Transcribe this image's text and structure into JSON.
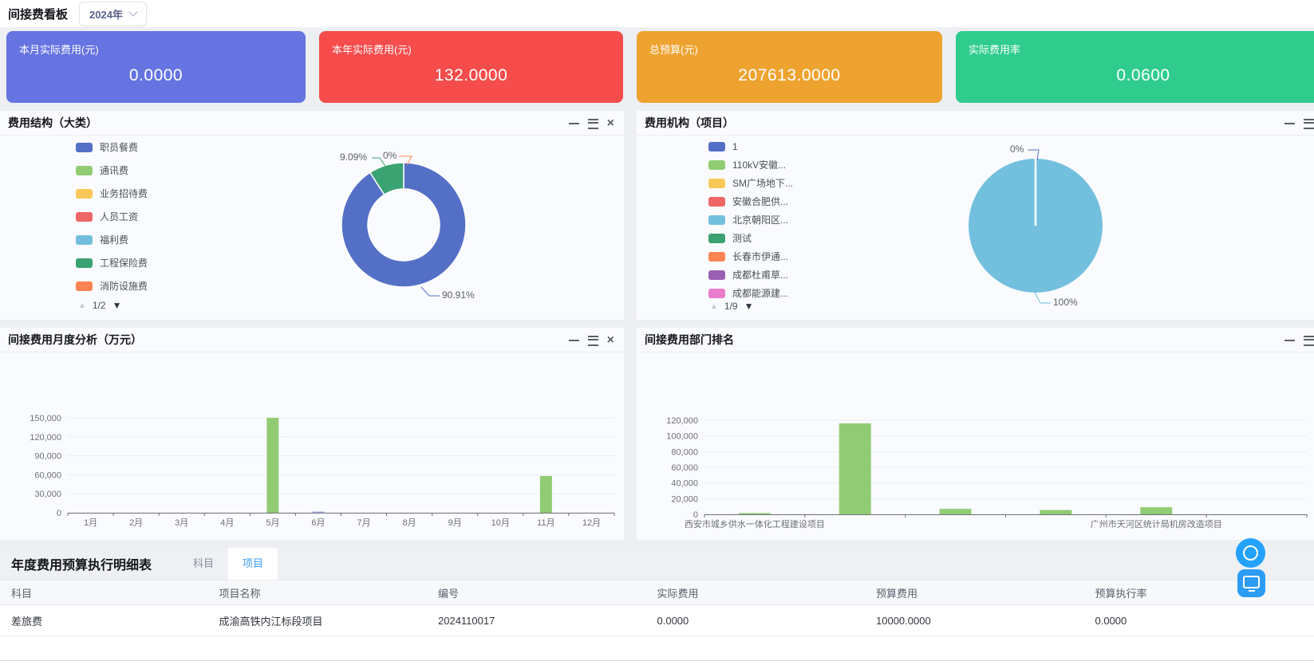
{
  "header": {
    "title": "间接费看板",
    "year": "2024年"
  },
  "kpis": [
    {
      "label": "本月实际费用(元)",
      "value": "0.0000",
      "color": "#6574e1"
    },
    {
      "label": "本年实际费用(元)",
      "value": "132.0000",
      "color": "#f64c4c"
    },
    {
      "label": "总预算(元)",
      "value": "207613.0000",
      "color": "#eea330"
    },
    {
      "label": "实际费用率",
      "value": "0.0600",
      "color": "#2fcc8e"
    }
  ],
  "panels": {
    "p1": {
      "title": "费用结构（大类）",
      "pagination": "1/2",
      "labels": {
        "small": "9.09%",
        "zero": "0%",
        "big": "90.91%"
      },
      "legend": [
        {
          "label": "职员餐费",
          "color": "#5470c6"
        },
        {
          "label": "通讯费",
          "color": "#91cc75"
        },
        {
          "label": "业务招待费",
          "color": "#fac858"
        },
        {
          "label": "人员工资",
          "color": "#ee6666"
        },
        {
          "label": "福利费",
          "color": "#73c0de"
        },
        {
          "label": "工程保险费",
          "color": "#3ba272"
        },
        {
          "label": "消防设施费",
          "color": "#fc8452"
        }
      ]
    },
    "p2": {
      "title": "费用机构（项目）",
      "pagination": "1/9",
      "labels": {
        "zero": "0%",
        "full": "100%"
      },
      "legend": [
        {
          "label": "1",
          "color": "#5470c6"
        },
        {
          "label": "110kV安徽...",
          "color": "#91cc75"
        },
        {
          "label": "SM广场地下...",
          "color": "#fac858"
        },
        {
          "label": "安徽合肥供...",
          "color": "#ee6666"
        },
        {
          "label": "北京朝阳区...",
          "color": "#73c0de"
        },
        {
          "label": "测试",
          "color": "#3ba272"
        },
        {
          "label": "长春市伊通...",
          "color": "#fc8452"
        },
        {
          "label": "成都杜甫草...",
          "color": "#9a60b4"
        },
        {
          "label": "成都能源建...",
          "color": "#ea7ccc"
        }
      ]
    },
    "p3": {
      "title": "间接费用月度分析（万元）"
    },
    "p4": {
      "title": "间接费用部门排名"
    }
  },
  "chart_data": [
    {
      "id": "expense-structure-donut",
      "type": "pie",
      "style": "donut",
      "title": "费用结构（大类）",
      "slices": [
        {
          "name": "职员餐费",
          "pct": 90.91,
          "color": "#5470c6"
        },
        {
          "name": "工程保险费",
          "pct": 9.09,
          "color": "#3ba272"
        },
        {
          "name": "消防设施费",
          "pct": 0,
          "color": "#fc8452"
        }
      ],
      "visible_labels": [
        "90.91%",
        "9.09%",
        "0%"
      ]
    },
    {
      "id": "expense-org-pie",
      "type": "pie",
      "style": "pie",
      "title": "费用机构（项目）",
      "slices": [
        {
          "name": "北京朝阳区...",
          "pct": 100,
          "color": "#73c0de"
        },
        {
          "name": "1",
          "pct": 0,
          "color": "#5470c6"
        }
      ],
      "visible_labels": [
        "100%",
        "0%"
      ]
    },
    {
      "id": "monthly-bar",
      "type": "bar",
      "title": "间接费用月度分析（万元）",
      "categories": [
        "1月",
        "2月",
        "3月",
        "4月",
        "5月",
        "6月",
        "7月",
        "8月",
        "9月",
        "10月",
        "11月",
        "12月"
      ],
      "values": [
        0,
        0,
        0,
        0,
        150000,
        1500,
        0,
        0,
        0,
        0,
        58000,
        0
      ],
      "bar_color": "#91cc75",
      "bar_colors": {
        "5": "#a8b0e8"
      },
      "ymax": 150000,
      "ystep": 30000,
      "grid": true,
      "ylabel": "",
      "xlabel": ""
    },
    {
      "id": "dept-rank-bar",
      "type": "bar",
      "title": "间接费用部门排名",
      "categories": [
        "西安市城乡供水一体化工程建设项目",
        "",
        "",
        "",
        "广州市天河区统计局机房改造项目",
        ""
      ],
      "values": [
        300,
        116000,
        7000,
        5500,
        9000,
        0
      ],
      "bar_color": "#91cc75",
      "ymax": 120000,
      "ystep": 20000,
      "grid": true,
      "ylabel": "",
      "xlabel": ""
    }
  ],
  "table": {
    "title": "年度费用预算执行明细表",
    "tabs": [
      {
        "label": "科目",
        "active": false
      },
      {
        "label": "项目",
        "active": true
      }
    ],
    "headers": [
      "科目",
      "项目名称",
      "编号",
      "实际费用",
      "预算费用",
      "预算执行率"
    ],
    "rows": [
      [
        "差旅费",
        "成渝高铁内江标段项目",
        "2024110017",
        "0.0000",
        "10000.0000",
        "0.0000"
      ]
    ]
  }
}
